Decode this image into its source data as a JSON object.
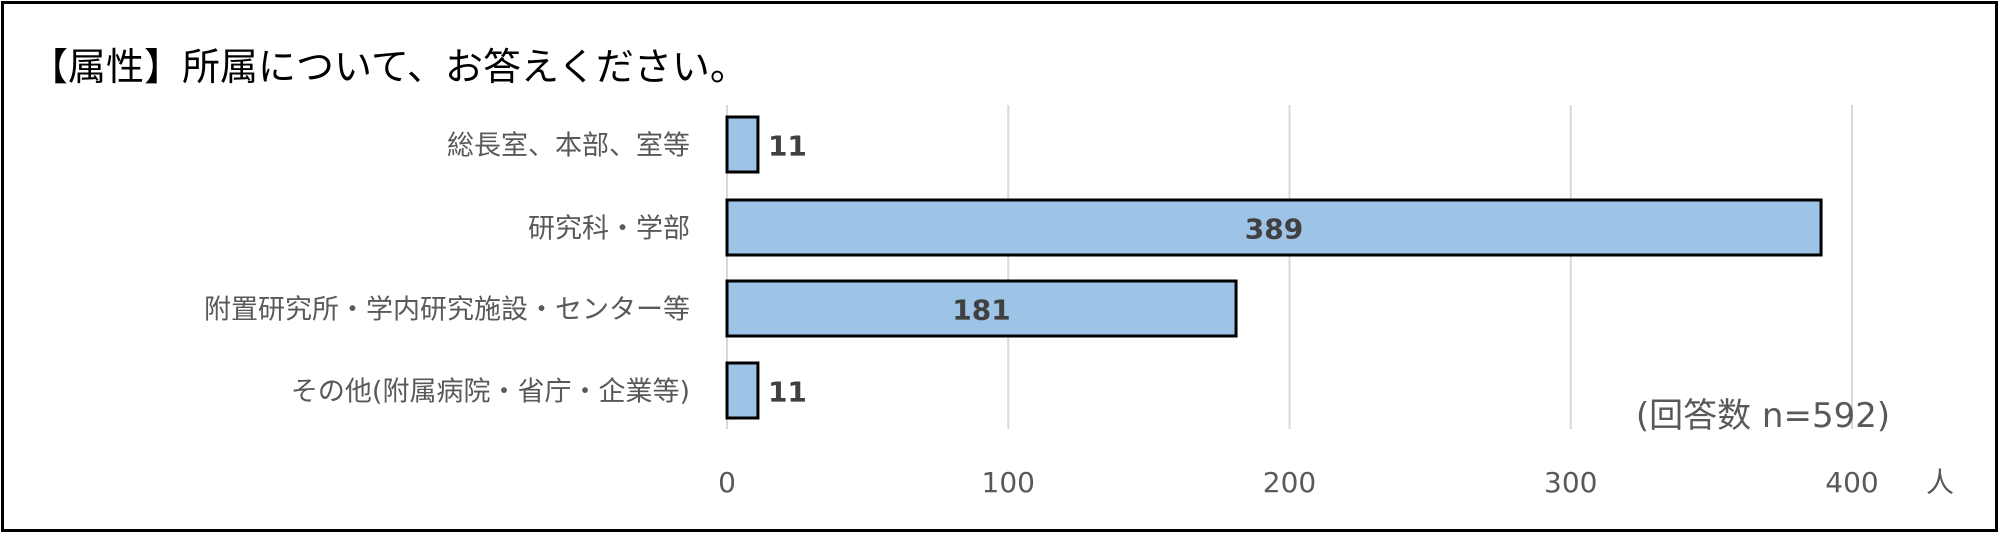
{
  "chart_data": {
    "type": "bar",
    "orientation": "horizontal",
    "title": "【属性】所属について、お答えください。",
    "categories": [
      "総長室、本部、室等",
      "研究科・学部",
      "附置研究所・学内研究施設・センター等",
      "その他(附属病院・省庁・企業等)"
    ],
    "values": [
      11,
      389,
      181,
      11
    ],
    "xlabel": "人",
    "xlim": [
      0,
      400
    ],
    "xticks": [
      "0",
      "100",
      "200",
      "300",
      "400"
    ],
    "grid": true,
    "note": "(回答数 n=592)",
    "colors": {
      "bar": "#9DC3E6",
      "bar_border": "#000000",
      "grid": "#D9D9D9"
    }
  }
}
